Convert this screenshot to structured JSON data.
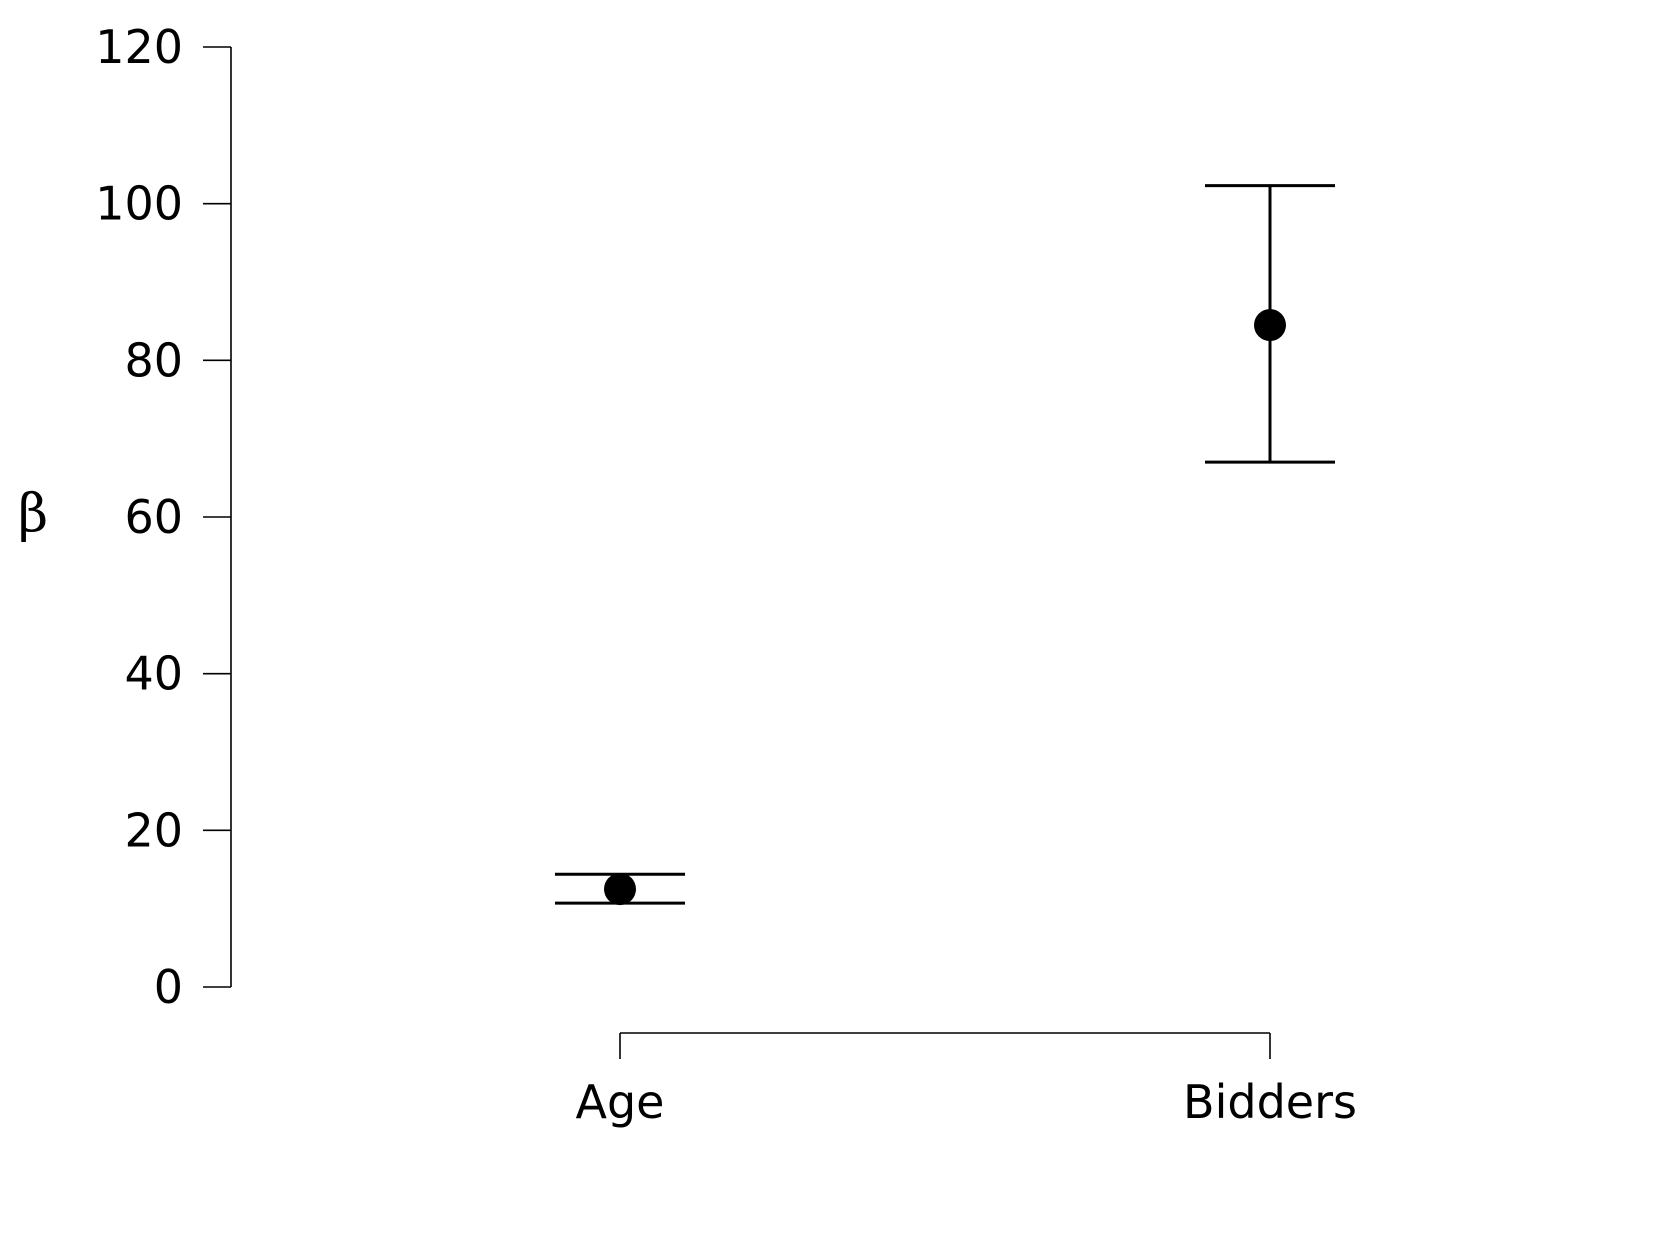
{
  "chart_data": {
    "type": "scatter",
    "title": "",
    "xlabel": "",
    "ylabel": "β",
    "ylim": [
      0,
      120
    ],
    "yticks": [
      0,
      20,
      40,
      60,
      80,
      100,
      120
    ],
    "ytick_labels": [
      "0",
      "20",
      "40",
      "60",
      "80",
      "100",
      "120"
    ],
    "categories": [
      "Age",
      "Bidders"
    ],
    "series": [
      {
        "estimate": [
          12.5,
          84.5
        ],
        "lower": [
          10.7,
          67.0
        ],
        "upper": [
          14.4,
          102.3
        ]
      }
    ],
    "grid": false,
    "legend": "none",
    "colors": {
      "marker": "#000000",
      "axis": "#000000"
    }
  }
}
